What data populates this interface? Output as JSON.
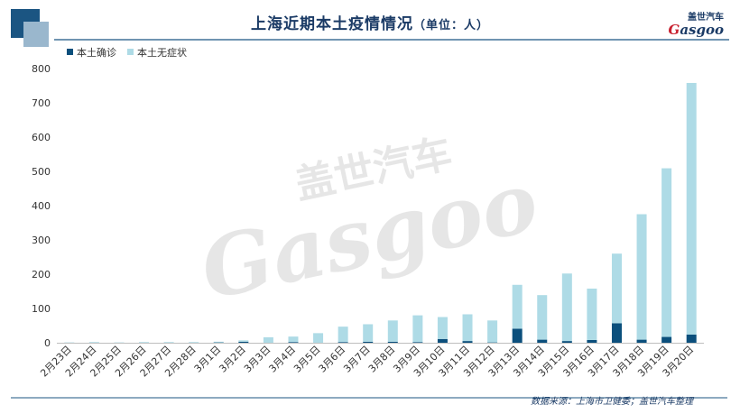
{
  "title": "上海近期本土疫情情况",
  "title_unit": "（单位：人）",
  "brand": {
    "logo_cn": "盖世汽车",
    "logo_en_g": "G",
    "logo_en_rest": "asgoo",
    "watermark_cn": "盖世汽车",
    "watermark_en": "Gasgoo"
  },
  "source_note": "数据来源：上海市卫健委；盖世汽车整理",
  "colors": {
    "confirmed": "#0b4f7c",
    "asymptomatic": "#aedbe6",
    "title": "#1b3b66",
    "accent_dark": "#1b5582",
    "accent_light": "#9ab7cd"
  },
  "chart_data": {
    "type": "bar",
    "stacked": true,
    "categories": [
      "2月23日",
      "2月24日",
      "2月25日",
      "2月26日",
      "2月27日",
      "2月28日",
      "3月1日",
      "3月2日",
      "3月3日",
      "3月4日",
      "3月5日",
      "3月6日",
      "3月7日",
      "3月8日",
      "3月9日",
      "3月10日",
      "3月11日",
      "3月12日",
      "3月13日",
      "3月14日",
      "3月15日",
      "3月16日",
      "3月17日",
      "3月18日",
      "3月19日",
      "3月20日"
    ],
    "series": [
      {
        "name": "本土确诊",
        "values": [
          0,
          0,
          0,
          0,
          0,
          0,
          1,
          3,
          0,
          2,
          0,
          2,
          3,
          3,
          2,
          11,
          5,
          1,
          41,
          9,
          5,
          8,
          57,
          9,
          17,
          24
        ]
      },
      {
        "name": "本土无症状",
        "values": [
          1,
          2,
          1,
          2,
          2,
          2,
          2,
          4,
          16,
          16,
          28,
          45,
          51,
          62,
          78,
          64,
          78,
          64,
          128,
          130,
          197,
          150,
          203,
          366,
          492,
          734
        ]
      }
    ],
    "ylim": [
      0,
      800
    ],
    "yticks": [
      0,
      100,
      200,
      300,
      400,
      500,
      600,
      700,
      800
    ],
    "legend": "top-left",
    "grid": false
  }
}
